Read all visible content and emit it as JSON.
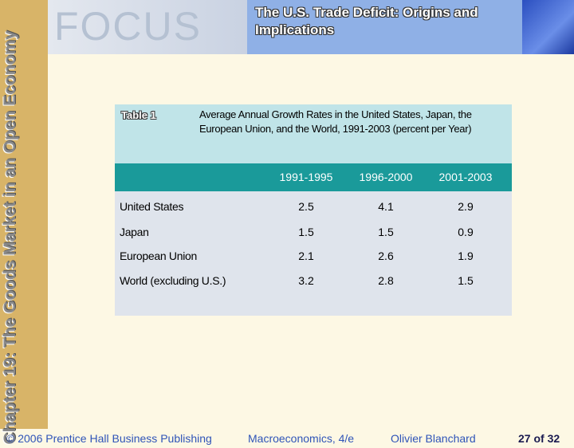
{
  "header": {
    "logo": "FOCUS",
    "title": "The U.S. Trade Deficit: Origins and Implications"
  },
  "sidebar": {
    "chapter": "Chapter 19: The Goods Market in an Open Economy"
  },
  "table": {
    "label": "Table 1",
    "caption": "Average Annual Growth Rates in the United States, Japan, the European Union, and the World, 1991-2003 (percent per Year)",
    "columns": [
      "1991-1995",
      "1996-2000",
      "2001-2003"
    ],
    "rows": [
      [
        "United States",
        "2.5",
        "4.1",
        "2.9"
      ],
      [
        "Japan",
        "1.5",
        "1.5",
        "0.9"
      ],
      [
        "European Union",
        "2.1",
        "2.6",
        "1.9"
      ],
      [
        "World (excluding U.S.)",
        "3.2",
        "2.8",
        "1.5"
      ]
    ]
  },
  "footer": {
    "copyright": "© 2006 Prentice Hall Business Publishing",
    "book": "Macroeconomics, 4/e",
    "author": "Olivier Blanchard",
    "page": "27 of 32"
  }
}
